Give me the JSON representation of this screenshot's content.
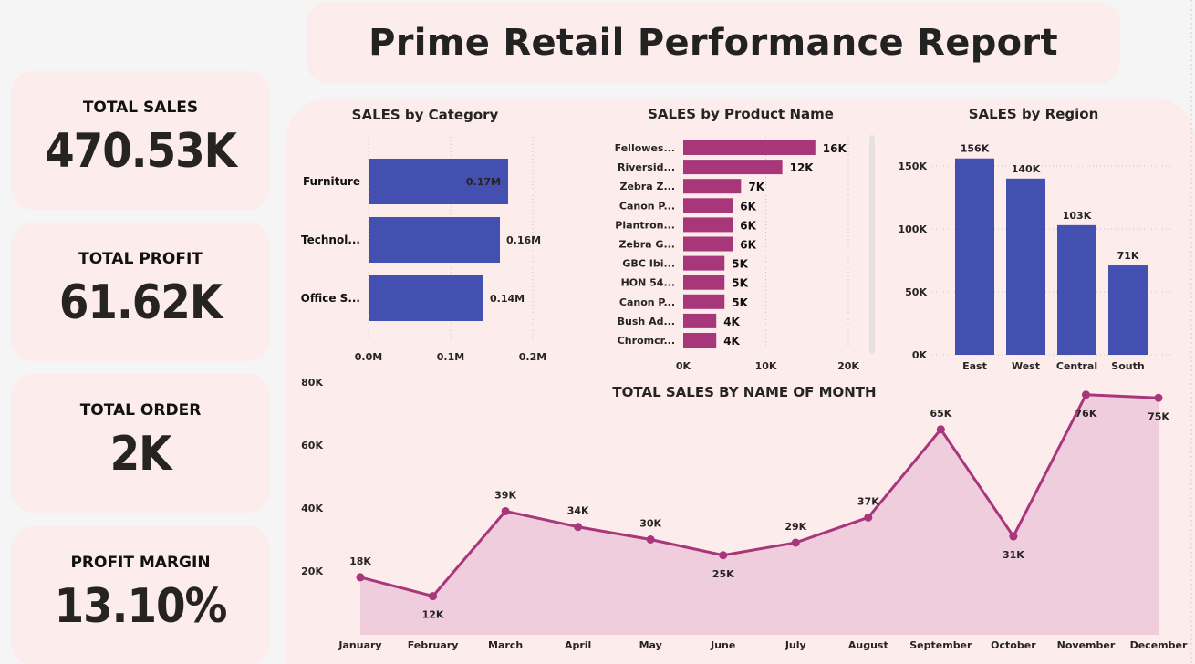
{
  "title": "Prime Retail Performance Report",
  "kpis": [
    {
      "label": "TOTAL SALES",
      "value": "470.53K"
    },
    {
      "label": "TOTAL PROFIT",
      "value": "61.62K"
    },
    {
      "label": "TOTAL ORDER",
      "value": "2K"
    },
    {
      "label": "PROFIT MARGIN",
      "value": "13.10%"
    }
  ],
  "colors": {
    "blue": "#4350b0",
    "magenta": "#a8367a",
    "area": "#efcddc",
    "card": "#fdecec"
  },
  "chart_data": [
    {
      "type": "bar",
      "orientation": "horizontal",
      "title": "SALES by Category",
      "categories": [
        "Furniture",
        "Technol...",
        "Office S..."
      ],
      "values": [
        0.17,
        0.16,
        0.14
      ],
      "value_labels": [
        "0.17M",
        "0.16M",
        "0.14M"
      ],
      "xlim": [
        0,
        0.2
      ],
      "xticks": [
        "0.0M",
        "0.1M",
        "0.2M"
      ]
    },
    {
      "type": "bar",
      "orientation": "horizontal",
      "title": "SALES by Product Name",
      "categories": [
        "Fellowes...",
        "Riversid...",
        "Zebra Z...",
        "Canon P...",
        "Plantron...",
        "Zebra G...",
        "GBC Ibi...",
        "HON 54...",
        "Canon P...",
        "Bush Ad...",
        "Chromcr..."
      ],
      "values": [
        16,
        12,
        7,
        6,
        6,
        6,
        5,
        5,
        5,
        4,
        4
      ],
      "value_labels": [
        "16K",
        "12K",
        "7K",
        "6K",
        "6K",
        "6K",
        "5K",
        "5K",
        "5K",
        "4K",
        "4K"
      ],
      "xlim": [
        0,
        20
      ],
      "xticks": [
        "0K",
        "10K",
        "20K"
      ]
    },
    {
      "type": "bar",
      "orientation": "vertical",
      "title": "SALES by Region",
      "categories": [
        "East",
        "West",
        "Central",
        "South"
      ],
      "values": [
        156,
        140,
        103,
        71
      ],
      "value_labels": [
        "156K",
        "140K",
        "103K",
        "71K"
      ],
      "ylim": [
        0,
        156
      ],
      "yticks": [
        "0K",
        "50K",
        "100K",
        "150K"
      ]
    },
    {
      "type": "area",
      "title": "TOTAL SALES BY NAME OF MONTH",
      "categories": [
        "January",
        "February",
        "March",
        "April",
        "May",
        "June",
        "July",
        "August",
        "September",
        "October",
        "November",
        "December"
      ],
      "values": [
        18,
        12,
        39,
        34,
        30,
        25,
        29,
        37,
        65,
        31,
        76,
        75
      ],
      "value_labels": [
        "18K",
        "12K",
        "39K",
        "34K",
        "30K",
        "25K",
        "29K",
        "37K",
        "65K",
        "31K",
        "76K",
        "75K"
      ],
      "ylim": [
        10,
        80
      ],
      "yticks": [
        "20K",
        "40K",
        "60K",
        "80K"
      ]
    }
  ]
}
